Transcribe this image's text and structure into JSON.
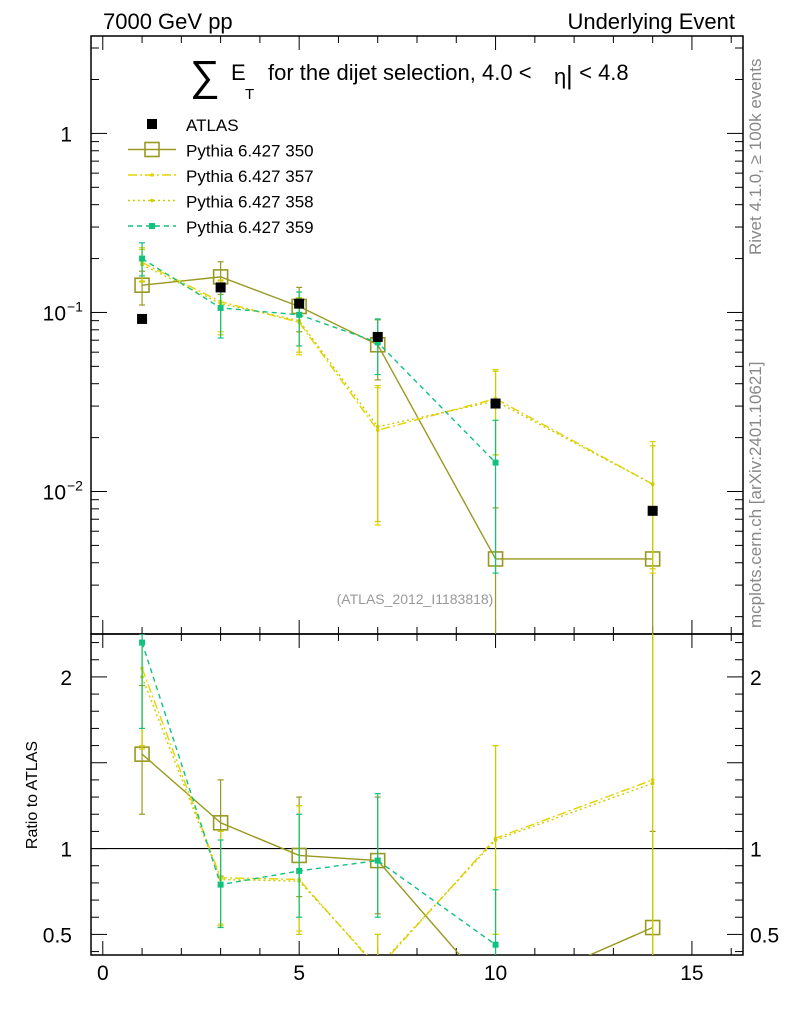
{
  "header": {
    "left": "7000 GeV pp",
    "right": "Underlying Event"
  },
  "title": {
    "sum_symbol": "∑",
    "e": "E",
    "sub": "T",
    "rest": "for the dijet selection, 4.0 <",
    "eta": "η",
    "bar": "|",
    "end": " < 4.8"
  },
  "side_text": {
    "rivet": "Rivet 4.1.0, ≥ 100k events",
    "mcplots": "mcplots.cern.ch [arXiv:2401.10621]"
  },
  "analysis_id": "(ATLAS_2012_I1183818)",
  "colors": {
    "atlas": "#000000",
    "p350": "#999922",
    "p357": "#e6d200",
    "p358": "#cccc00",
    "p359": "#11c27f"
  },
  "chart_data": {
    "type": "scatter",
    "x_axis": {
      "range": [
        -0.3,
        16.3
      ],
      "ticks": [
        0,
        5,
        10,
        15
      ],
      "tick_labels": [
        "0",
        "5",
        "10",
        "15"
      ]
    },
    "main": {
      "yscale": "log",
      "ylim": [
        0.0016,
        3.5
      ],
      "ticks": [
        1,
        0.1,
        0.01
      ],
      "tick_labels": [
        "1",
        "10",
        "10"
      ],
      "tick_exponents": [
        "",
        "−1",
        "−2"
      ]
    },
    "ratio": {
      "ylabel": "Ratio to ATLAS",
      "ylim": [
        0.38,
        2.25
      ],
      "ticks": [
        2,
        1,
        0.5
      ],
      "tick_labels": [
        "2",
        "1",
        "0.5"
      ],
      "ref": 1
    },
    "legend": [
      {
        "name": "ATLAS",
        "key": "atlas"
      },
      {
        "name": "Pythia 6.427 350",
        "key": "p350"
      },
      {
        "name": "Pythia 6.427 357",
        "key": "p357"
      },
      {
        "name": "Pythia 6.427 358",
        "key": "p358"
      },
      {
        "name": "Pythia 6.427 359",
        "key": "p359"
      }
    ],
    "series": [
      {
        "key": "atlas",
        "name": "ATLAS",
        "marker": "filled-square",
        "x": [
          1,
          3,
          5,
          7,
          10,
          14
        ],
        "y": [
          0.092,
          0.138,
          0.112,
          0.073,
          0.031,
          0.0078
        ]
      },
      {
        "key": "p350",
        "name": "Pythia 6.427 350",
        "marker": "open-square",
        "dash": "",
        "x": [
          1,
          3,
          5,
          7,
          10,
          14
        ],
        "y": [
          0.142,
          0.158,
          0.108,
          0.066,
          0.0042,
          0.0042
        ],
        "lo": [
          0.11,
          0.126,
          0.078,
          0.042,
          0.0001,
          0.0001
        ],
        "hi": [
          0.17,
          0.192,
          0.138,
          0.091,
          0.0081,
          0.0081
        ],
        "ratio": [
          1.55,
          1.15,
          0.96,
          0.93,
          0.14,
          0.54
        ],
        "ratio_lo": [
          1.2,
          0.84,
          0.72,
          0.62,
          0.0,
          0.0
        ],
        "ratio_hi": [
          1.95,
          1.4,
          1.3,
          1.3,
          0.3,
          1.1
        ]
      },
      {
        "key": "p357",
        "name": "Pythia 6.427 357",
        "marker": "small-dot",
        "dash": "9,3,2,3",
        "x": [
          1,
          3,
          5,
          7,
          10,
          14
        ],
        "y": [
          0.19,
          0.115,
          0.088,
          0.022,
          0.033,
          0.011
        ],
        "lo": [
          0.15,
          0.078,
          0.058,
          0.0065,
          0.016,
          0.0035
        ],
        "hi": [
          0.23,
          0.152,
          0.12,
          0.038,
          0.048,
          0.019
        ],
        "ratio": [
          2.05,
          0.83,
          0.82,
          0.3,
          1.06,
          1.4
        ],
        "ratio_lo": [
          1.6,
          0.56,
          0.52,
          0.1,
          0.5,
          0.3
        ],
        "ratio_hi": [
          2.2,
          1.1,
          1.25,
          0.5,
          1.6,
          2.5
        ]
      },
      {
        "key": "p358",
        "name": "Pythia 6.427 358",
        "marker": "small-dot",
        "dash": "2,3",
        "x": [
          1,
          3,
          5,
          7,
          10,
          14
        ],
        "y": [
          0.185,
          0.112,
          0.09,
          0.023,
          0.032,
          0.011
        ],
        "lo": [
          0.148,
          0.075,
          0.06,
          0.0068,
          0.016,
          0.0037
        ],
        "hi": [
          0.225,
          0.15,
          0.121,
          0.039,
          0.047,
          0.018
        ],
        "ratio": [
          2.0,
          0.82,
          0.81,
          0.31,
          1.05,
          1.38
        ],
        "ratio_lo": [
          1.58,
          0.55,
          0.5,
          0.1,
          0.5,
          0.3
        ],
        "ratio_hi": [
          2.2,
          1.1,
          1.25,
          0.5,
          1.6,
          2.5
        ]
      },
      {
        "key": "p359",
        "name": "Pythia 6.427 359",
        "marker": "small-square",
        "dash": "5,4",
        "x": [
          1,
          3,
          5,
          7,
          10,
          14
        ],
        "y": [
          0.2,
          0.106,
          0.097,
          0.068,
          0.0145,
          null
        ],
        "lo": [
          0.16,
          0.072,
          0.065,
          0.045,
          0.0035,
          null
        ],
        "hi": [
          0.245,
          0.14,
          0.13,
          0.092,
          0.025,
          null
        ],
        "ratio": [
          2.2,
          0.79,
          0.87,
          0.93,
          0.44,
          null
        ],
        "ratio_lo": [
          1.7,
          0.54,
          0.6,
          0.6,
          0.1,
          null
        ],
        "ratio_hi": [
          2.25,
          1.05,
          1.2,
          1.32,
          0.76,
          null
        ]
      }
    ]
  }
}
